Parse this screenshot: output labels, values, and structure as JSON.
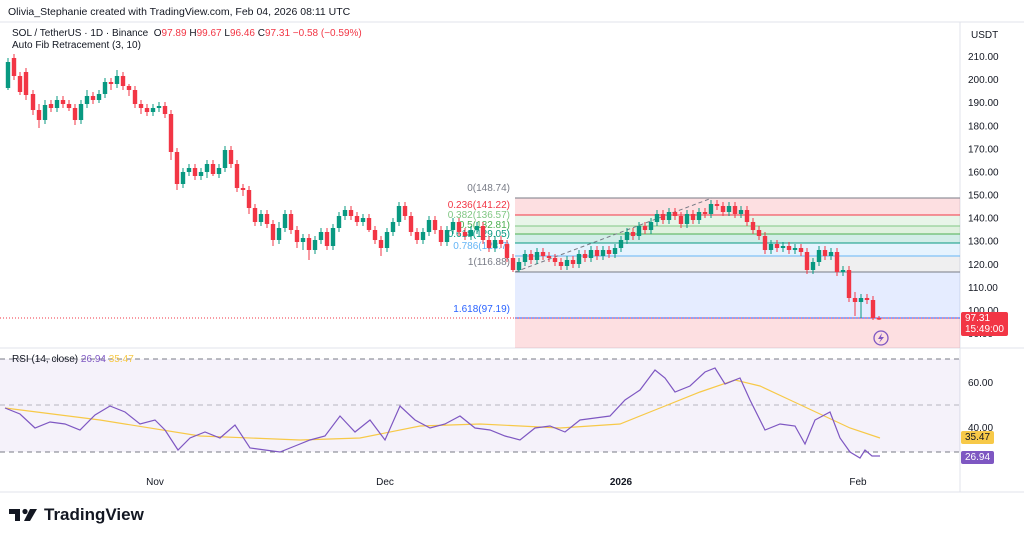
{
  "header": {
    "creator_line": "Olivia_Stephanie created with TradingView.com, Feb 04, 2026 08:11 UTC"
  },
  "legend": {
    "symbol": "SOL / TetherUS · 1D · Binance",
    "o_label": "O",
    "open": "97.89",
    "h_label": "H",
    "high": "99.67",
    "l_label": "L",
    "low": "96.46",
    "c_label": "C",
    "close": "97.31",
    "change": "−0.58 (−0.59%)",
    "indicator": "Auto Fib Retracement (3, 10)"
  },
  "price_axis": {
    "currency": "USDT",
    "ticks": [
      "210.00",
      "200.00",
      "190.00",
      "180.00",
      "170.00",
      "160.00",
      "150.00",
      "140.00",
      "130.00",
      "120.00",
      "110.00",
      "100.00",
      "90.00"
    ],
    "last_price_tag": "97.31",
    "countdown_tag": "15:49:00"
  },
  "fib_levels": [
    {
      "label": "0(148.74)",
      "color": "#787b86"
    },
    {
      "label": "0.236(141.22)",
      "color": "#f23645"
    },
    {
      "label": "0.382(136.57)",
      "color": "#81c784"
    },
    {
      "label": "0.5(132.81)",
      "color": "#4caf50"
    },
    {
      "label": "0.618(129.05)",
      "color": "#089981"
    },
    {
      "label": "0.786(123.7)",
      "color": "#64b5f6"
    },
    {
      "label": "1(116.88)",
      "color": "#787b86"
    },
    {
      "label": "1.618(97.19)",
      "color": "#2962ff"
    }
  ],
  "rsi": {
    "title": "RSI (14, close)",
    "rsi_value": "26.94",
    "ma_value": "35.47",
    "ticks": [
      "60.00",
      "40.00"
    ],
    "tag_ma": "35.47",
    "tag_rsi": "26.94"
  },
  "time_axis": {
    "labels": [
      "Nov",
      "Dec",
      "2026",
      "Feb"
    ]
  },
  "brand": {
    "name": "TradingView"
  },
  "colors": {
    "up": "#089981",
    "down": "#f23645",
    "rsi_line": "#7e57c2",
    "rsi_ma": "#f7c948"
  }
}
